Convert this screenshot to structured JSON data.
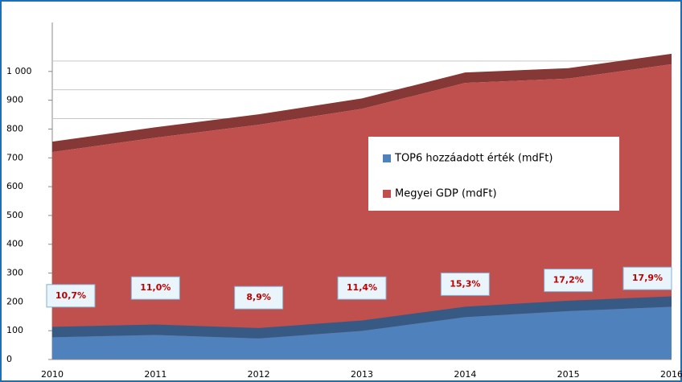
{
  "chart_data": {
    "type": "area",
    "x": [
      2010,
      2011,
      2012,
      2013,
      2014,
      2015,
      2016
    ],
    "xlim": [
      2010,
      2016
    ],
    "xticks": [
      2010,
      2011,
      2012,
      2013,
      2014,
      2015,
      2016
    ],
    "ylim": [
      0,
      1100
    ],
    "yticks": [
      0,
      100,
      200,
      300,
      400,
      500,
      600,
      700,
      800,
      900,
      {
        "value": 1000,
        "label": "1 000"
      }
    ],
    "grid": true,
    "legend": "center",
    "series": [
      {
        "name": "Megyei GDP (mdFt)",
        "color": "#c0504d",
        "values": [
          720,
          770,
          815,
          870,
          960,
          975,
          1025
        ]
      },
      {
        "name": "TOP6 hozzáadott érték (mdFt)",
        "color": "#4f81bd",
        "values": [
          77,
          85,
          73,
          99,
          147,
          168,
          183
        ]
      }
    ],
    "annotations": [
      "10,7%",
      "11,0%",
      "8,9%",
      "11,4%",
      "15,3%",
      "17,2%",
      "17,9%"
    ]
  }
}
